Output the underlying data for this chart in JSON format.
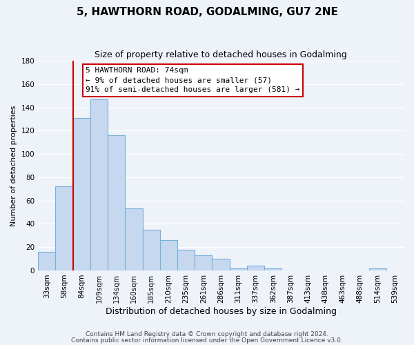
{
  "title": "5, HAWTHORN ROAD, GODALMING, GU7 2NE",
  "subtitle": "Size of property relative to detached houses in Godalming",
  "xlabel": "Distribution of detached houses by size in Godalming",
  "ylabel": "Number of detached properties",
  "bin_labels": [
    "33sqm",
    "58sqm",
    "84sqm",
    "109sqm",
    "134sqm",
    "160sqm",
    "185sqm",
    "210sqm",
    "235sqm",
    "261sqm",
    "286sqm",
    "311sqm",
    "337sqm",
    "362sqm",
    "387sqm",
    "413sqm",
    "438sqm",
    "463sqm",
    "488sqm",
    "514sqm",
    "539sqm"
  ],
  "bar_heights": [
    16,
    72,
    131,
    147,
    116,
    53,
    35,
    26,
    18,
    13,
    10,
    2,
    4,
    2,
    0,
    0,
    0,
    0,
    0,
    2,
    0
  ],
  "bar_color": "#c5d8f0",
  "bar_edge_color": "#7ab0d8",
  "ylim": [
    0,
    180
  ],
  "yticks": [
    0,
    20,
    40,
    60,
    80,
    100,
    120,
    140,
    160,
    180
  ],
  "vline_color": "#cc0000",
  "vline_x_index": 2,
  "annotation_line1": "5 HAWTHORN ROAD: 74sqm",
  "annotation_line2": "← 9% of detached houses are smaller (57)",
  "annotation_line3": "91% of semi-detached houses are larger (581) →",
  "annotation_box_color": "#ffffff",
  "annotation_box_edge": "#cc0000",
  "footer_line1": "Contains HM Land Registry data © Crown copyright and database right 2024.",
  "footer_line2": "Contains public sector information licensed under the Open Government Licence v3.0.",
  "background_color": "#eef2f9",
  "grid_color": "#ffffff",
  "title_fontsize": 11,
  "subtitle_fontsize": 9,
  "xlabel_fontsize": 9,
  "ylabel_fontsize": 8,
  "tick_fontsize": 7.5,
  "annotation_fontsize": 8,
  "footer_fontsize": 6.5
}
